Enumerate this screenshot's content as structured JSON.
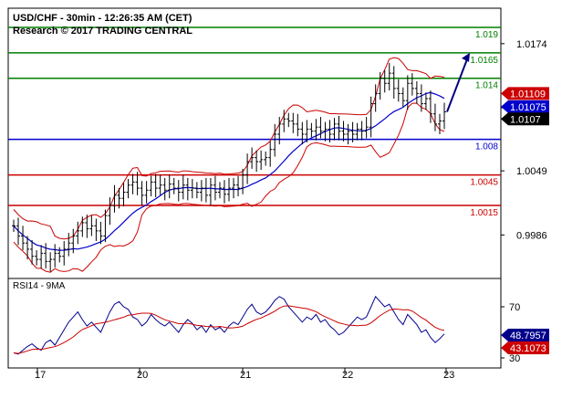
{
  "header": {
    "title": "USD/CHF - 30min - 12:26:35 AM (CET)",
    "copyright": "Research © 2017 TRADING CENTRAL"
  },
  "colors": {
    "resistance": "#008000",
    "pivot": "#0000cc",
    "support": "#cc0000",
    "candles": "#000000",
    "bollinger": "#cc0000",
    "moving_average": "#0000cc",
    "rsi_line": "#00008b",
    "rsi_signal": "#cc0000",
    "arrow": "#000080",
    "price_tag": "#000000",
    "ma_tag": "#0000cc",
    "boll_tag": "#cc0000"
  },
  "chart_data": [
    {
      "type": "candlestick",
      "price_axis": {
        "range": [
          0.9934,
          1.019
        ],
        "tick_labels": [
          "1.0174",
          "1.0111",
          "1.0049",
          "0.9986"
        ]
      },
      "time_axis": {
        "tick_labels": [
          "17",
          "20",
          "21",
          "22",
          "23"
        ]
      },
      "levels": [
        {
          "label": "1.019",
          "value": 1.019,
          "kind": "resistance"
        },
        {
          "label": "1.0165",
          "value": 1.0165,
          "kind": "resistance"
        },
        {
          "label": "1.014",
          "value": 1.014,
          "kind": "resistance"
        },
        {
          "label": "1.008",
          "value": 1.008,
          "kind": "pivot"
        },
        {
          "label": "1.0045",
          "value": 1.0045,
          "kind": "support"
        },
        {
          "label": "1.0015",
          "value": 1.0015,
          "kind": "support"
        }
      ],
      "tags": [
        {
          "label": "1.01109",
          "value": 1.0125,
          "kind": "bollinger-upper"
        },
        {
          "label": "1.01075",
          "value": 1.0112,
          "kind": "moving-average"
        },
        {
          "label": "1.0107",
          "value": 1.01,
          "kind": "last-price"
        }
      ],
      "close_series": [
        0.9995,
        0.9985,
        0.9978,
        0.9972,
        0.9965,
        0.9962,
        0.9968,
        0.996,
        0.9962,
        0.9968,
        0.9965,
        0.9972,
        0.9978,
        0.9985,
        0.999,
        0.9998,
        0.9992,
        0.9995,
        0.999,
        0.9985,
        1.0005,
        1.0015,
        1.0025,
        1.0022,
        1.0028,
        1.0035,
        1.0038,
        1.0032,
        1.0025,
        1.003,
        1.0038,
        1.0032,
        1.0035,
        1.003,
        1.0036,
        1.0032,
        1.0028,
        1.0035,
        1.003,
        1.0032,
        1.0028,
        1.0032,
        1.0025,
        1.0035,
        1.0028,
        1.0032,
        1.0026,
        1.0032,
        1.0035,
        1.0032,
        1.0045,
        1.0058,
        1.0062,
        1.0058,
        1.006,
        1.0062,
        1.007,
        1.0085,
        1.0095,
        1.01,
        1.0098,
        1.0095,
        1.009,
        1.0085,
        1.009,
        1.0088,
        1.0092,
        1.0088,
        1.009,
        1.0085,
        1.0095,
        1.0088,
        1.0085,
        1.0088,
        1.0085,
        1.009,
        1.0088,
        1.0092,
        1.0115,
        1.0125,
        1.014,
        1.0135,
        1.0145,
        1.013,
        1.0125,
        1.0118,
        1.0135,
        1.013,
        1.0125,
        1.0115,
        1.012,
        1.0105,
        1.0095,
        1.0098,
        1.0107
      ],
      "projection": {
        "from": 1.0107,
        "to": 1.0165
      }
    },
    {
      "type": "line",
      "title": "RSI14 - 9MA",
      "y_axis": {
        "range": [
          30,
          80
        ],
        "tick_labels": [
          "70",
          "30"
        ]
      },
      "series": [
        {
          "name": "RSI14",
          "value_tag": "48.7957"
        },
        {
          "name": "9MA",
          "value_tag": "43.1073"
        }
      ],
      "rsi_values": [
        34,
        33,
        36,
        39,
        41,
        38,
        36,
        42,
        44,
        40,
        46,
        52,
        58,
        62,
        66,
        60,
        55,
        58,
        54,
        50,
        58,
        66,
        72,
        74,
        70,
        68,
        62,
        60,
        55,
        58,
        64,
        60,
        57,
        55,
        58,
        54,
        50,
        56,
        60,
        57,
        52,
        55,
        50,
        56,
        52,
        54,
        50,
        55,
        58,
        56,
        62,
        68,
        72,
        66,
        64,
        66,
        70,
        75,
        78,
        76,
        70,
        66,
        62,
        58,
        62,
        60,
        64,
        58,
        60,
        55,
        52,
        48,
        50,
        54,
        58,
        62,
        60,
        62,
        70,
        78,
        74,
        70,
        72,
        66,
        60,
        56,
        64,
        60,
        56,
        50,
        52,
        46,
        42,
        45,
        48.7957
      ]
    }
  ]
}
